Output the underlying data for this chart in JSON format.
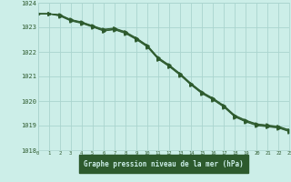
{
  "title": "Graphe pression niveau de la mer (hPa)",
  "background_color": "#cceee8",
  "grid_color": "#aad4ce",
  "line_color": "#2d5a2d",
  "xlim": [
    0,
    23
  ],
  "ylim": [
    1018,
    1024
  ],
  "yticks": [
    1018,
    1019,
    1020,
    1021,
    1022,
    1023,
    1024
  ],
  "xticks": [
    0,
    1,
    2,
    3,
    4,
    5,
    6,
    7,
    8,
    9,
    10,
    11,
    12,
    13,
    14,
    15,
    16,
    17,
    18,
    19,
    20,
    21,
    22,
    23
  ],
  "series": [
    [
      1023.55,
      1023.55,
      1023.5,
      1023.3,
      1023.2,
      1023.05,
      1022.9,
      1022.95,
      1022.8,
      1022.55,
      1022.25,
      1021.75,
      1021.45,
      1021.1,
      1020.7,
      1020.35,
      1020.1,
      1019.8,
      1019.4,
      1019.2,
      1019.05,
      1019.0,
      1018.95,
      1018.8
    ],
    [
      1023.55,
      1023.55,
      1023.48,
      1023.28,
      1023.18,
      1023.03,
      1022.87,
      1022.92,
      1022.77,
      1022.52,
      1022.22,
      1021.72,
      1021.42,
      1021.07,
      1020.67,
      1020.32,
      1020.07,
      1019.77,
      1019.37,
      1019.17,
      1019.02,
      1018.97,
      1018.92,
      1018.77
    ],
    [
      1023.55,
      1023.55,
      1023.52,
      1023.32,
      1023.22,
      1023.07,
      1022.92,
      1022.97,
      1022.82,
      1022.57,
      1022.27,
      1021.77,
      1021.47,
      1021.12,
      1020.72,
      1020.37,
      1020.12,
      1019.82,
      1019.42,
      1019.22,
      1019.07,
      1019.02,
      1018.97,
      1018.82
    ],
    [
      1023.55,
      1023.55,
      1023.46,
      1023.26,
      1023.16,
      1023.01,
      1022.85,
      1022.9,
      1022.75,
      1022.5,
      1022.2,
      1021.7,
      1021.4,
      1021.05,
      1020.65,
      1020.3,
      1020.05,
      1019.75,
      1019.35,
      1019.15,
      1019.0,
      1018.95,
      1018.9,
      1018.75
    ]
  ],
  "label_bg_color": "#2d5a2d",
  "label_fg_color": "#cceee8"
}
